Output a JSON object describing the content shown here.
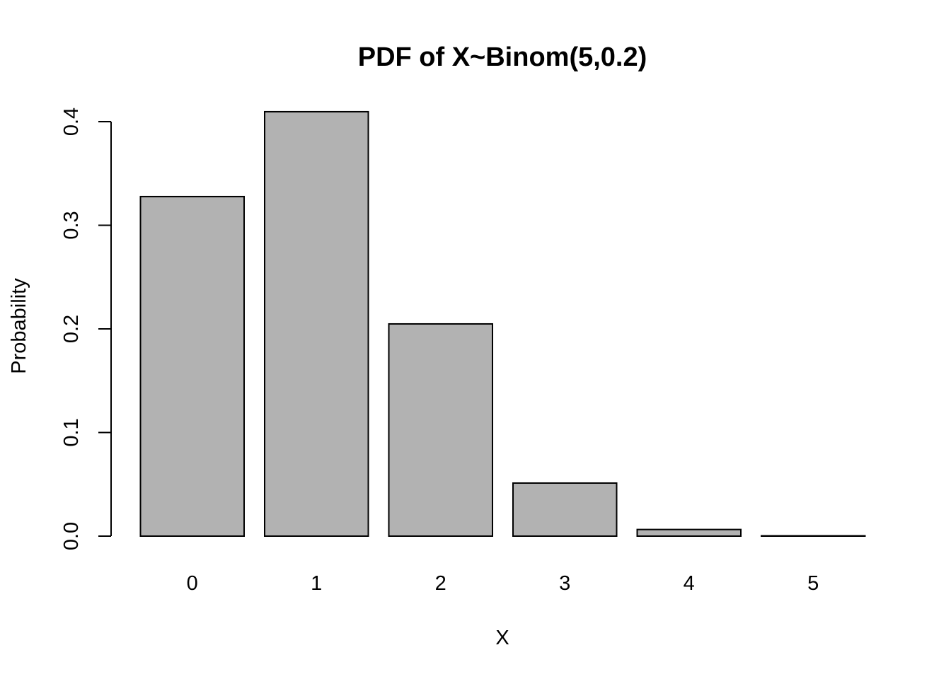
{
  "chart_data": {
    "type": "bar",
    "title": "PDF of X~Binom(5,0.2)",
    "xlabel": "X",
    "ylabel": "Probability",
    "categories": [
      "0",
      "1",
      "2",
      "3",
      "4",
      "5"
    ],
    "values": [
      0.32768,
      0.4096,
      0.2048,
      0.0512,
      0.0064,
      0.00032
    ],
    "ylim": [
      0,
      0.4
    ],
    "yticks": [
      "0.0",
      "0.1",
      "0.2",
      "0.3",
      "0.4"
    ],
    "grid": false,
    "legend": "none",
    "colors": {
      "bar_fill": "#b2b2b2",
      "bar_stroke": "#000000",
      "axis": "#000000"
    }
  }
}
